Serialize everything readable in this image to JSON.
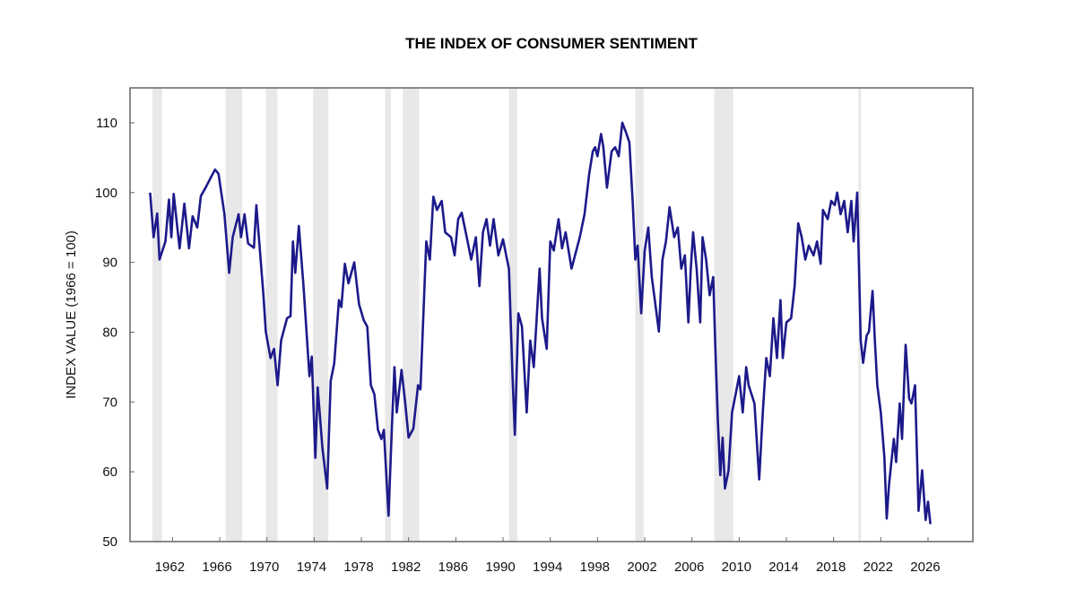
{
  "chart_data": {
    "type": "line",
    "title": "THE INDEX OF CONSUMER SENTIMENT",
    "xlabel": "",
    "ylabel": "INDEX VALUE (1966 = 100)",
    "xlim": [
      1958.4,
      2029.8
    ],
    "ylim": [
      50,
      115
    ],
    "x_ticks": [
      "1962",
      "1966",
      "1970",
      "1974",
      "1978",
      "1982",
      "1986",
      "1990",
      "1994",
      "1998",
      "2002",
      "2006",
      "2010",
      "2014",
      "2018",
      "2022",
      "2026"
    ],
    "y_ticks": [
      "50",
      "60",
      "70",
      "80",
      "90",
      "100",
      "110"
    ],
    "grid": false,
    "legend": "none",
    "colors": {
      "line": "#1c1a8a",
      "recession_band": "#e8e8e8",
      "frame": "#666666"
    },
    "shaded_periods": [
      [
        1960.3,
        1961.1
      ],
      [
        1966.5,
        1967.9
      ],
      [
        1969.9,
        1970.9
      ],
      [
        1973.9,
        1975.2
      ],
      [
        1980.0,
        1980.5
      ],
      [
        1981.5,
        1982.9
      ],
      [
        1990.5,
        1991.2
      ],
      [
        2001.2,
        2001.9
      ],
      [
        2007.9,
        2009.5
      ],
      [
        2020.1,
        2020.3
      ]
    ],
    "series": [
      {
        "x": [
          1960.1,
          1960.4,
          1960.7,
          1960.9,
          1961.4,
          1961.7,
          1961.9,
          1962.1,
          1962.6,
          1963.0,
          1963.4,
          1963.7,
          1964.1,
          1964.4,
          1964.8,
          1965.2,
          1965.6,
          1965.9,
          1966.4,
          1966.8,
          1967.1,
          1967.6,
          1967.8,
          1968.1,
          1968.4,
          1968.9,
          1969.1,
          1969.7,
          1969.9,
          1970.3,
          1970.6,
          1970.9,
          1971.2,
          1971.7,
          1972.0,
          1972.2,
          1972.4,
          1972.7,
          1973.1,
          1973.6,
          1973.8,
          1974.1,
          1974.3,
          1974.7,
          1975.1,
          1975.4,
          1975.7,
          1976.1,
          1976.3,
          1976.6,
          1976.9,
          1977.4,
          1977.8,
          1978.2,
          1978.5,
          1978.8,
          1979.1,
          1979.4,
          1979.7,
          1979.9,
          1980.3,
          1980.6,
          1980.8,
          1981.0,
          1981.4,
          1981.7,
          1982.0,
          1982.4,
          1982.8,
          1983.0,
          1983.5,
          1983.8,
          1984.1,
          1984.4,
          1984.8,
          1985.1,
          1985.6,
          1985.9,
          1986.2,
          1986.5,
          1987.0,
          1987.3,
          1987.7,
          1988.0,
          1988.3,
          1988.6,
          1988.9,
          1989.2,
          1989.6,
          1990.0,
          1990.3,
          1990.5,
          1990.8,
          1991.0,
          1991.3,
          1991.6,
          1992.0,
          1992.3,
          1992.6,
          1993.1,
          1993.3,
          1993.7,
          1994.0,
          1994.3,
          1994.7,
          1995.0,
          1995.3,
          1995.8,
          1996.1,
          1996.5,
          1996.9,
          1997.3,
          1997.6,
          1997.8,
          1998.0,
          1998.3,
          1998.5,
          1998.8,
          1999.2,
          1999.5,
          1999.8,
          2000.1,
          2000.4,
          2000.7,
          2001.0,
          2001.2,
          2001.4,
          2001.7,
          2002.0,
          2002.3,
          2002.6,
          2002.9,
          2003.2,
          2003.5,
          2003.8,
          2004.1,
          2004.5,
          2004.8,
          2005.1,
          2005.4,
          2005.7,
          2005.9,
          2006.1,
          2006.4,
          2006.7,
          2006.9,
          2007.2,
          2007.5,
          2007.8,
          2008.0,
          2008.2,
          2008.4,
          2008.6,
          2008.8,
          2009.1,
          2009.4,
          2009.7,
          2010.0,
          2010.3,
          2010.6,
          2010.8,
          2011.3,
          2011.7,
          2012.0,
          2012.3,
          2012.6,
          2012.9,
          2013.2,
          2013.5,
          2013.7,
          2014.0,
          2014.4,
          2014.7,
          2015.0,
          2015.3,
          2015.6,
          2015.9,
          2016.3,
          2016.6,
          2016.9,
          2017.1,
          2017.5,
          2017.8,
          2018.1,
          2018.3,
          2018.6,
          2018.9,
          2019.2,
          2019.5,
          2019.7,
          2020.0,
          2020.3,
          2020.5,
          2020.8,
          2021.0,
          2021.3,
          2021.5,
          2021.7,
          2022.0,
          2022.3,
          2022.5,
          2022.7,
          2023.1,
          2023.3,
          2023.6,
          2023.8,
          2024.1,
          2024.4,
          2024.6,
          2024.9,
          2025.2,
          2025.5,
          2025.8,
          2026.0,
          2026.2
        ],
        "y": [
          100,
          93.6,
          97,
          90.4,
          93,
          99,
          93.6,
          99.8,
          92,
          98.4,
          92,
          96.6,
          95,
          99.5,
          100.7,
          102,
          103.3,
          102.7,
          96.9,
          88.5,
          93.6,
          96.9,
          93.6,
          96.9,
          92.7,
          92.1,
          98.2,
          85.3,
          80.1,
          76.3,
          77.6,
          72.4,
          78.8,
          82,
          82.3,
          93,
          88.5,
          95.2,
          86.6,
          73.7,
          76.5,
          62,
          72.1,
          63.4,
          57.6,
          73,
          75.6,
          84.6,
          83.6,
          89.8,
          87,
          90,
          84,
          81.7,
          80.8,
          72.4,
          71.1,
          66,
          64.7,
          66,
          53.7,
          67.2,
          75,
          68.5,
          74.6,
          70,
          64.9,
          66.2,
          72.4,
          71.8,
          93,
          90.4,
          99.4,
          97.5,
          98.8,
          94.3,
          93.6,
          91,
          96.2,
          97.1,
          93,
          90.4,
          93.6,
          86.6,
          94.3,
          96.2,
          92.4,
          96.2,
          91,
          93.3,
          90.7,
          89.1,
          73.7,
          65.3,
          82.7,
          80.8,
          68.5,
          78.8,
          75,
          89.1,
          82,
          77.6,
          93,
          91.7,
          96.2,
          92,
          94.3,
          89.1,
          91,
          93.6,
          96.9,
          102.7,
          105.9,
          106.5,
          105.2,
          108.4,
          106.5,
          100.7,
          105.9,
          106.5,
          105.2,
          110,
          108.7,
          107.2,
          98.2,
          90.4,
          92.4,
          82.7,
          91.7,
          95,
          87.9,
          84,
          80.1,
          90.4,
          93,
          97.9,
          93.6,
          95,
          89.1,
          91,
          81.4,
          89.1,
          94.3,
          89.1,
          81.4,
          93.6,
          90.4,
          85.3,
          87.9,
          76.9,
          67.3,
          59.5,
          64.9,
          57.6,
          60.2,
          68.5,
          71.1,
          73.7,
          68.5,
          75,
          72.4,
          69.8,
          58.9,
          68.5,
          76.3,
          73.7,
          82,
          76.3,
          84.6,
          76.3,
          81.4,
          82,
          86.6,
          95.6,
          93.6,
          90.4,
          92.4,
          91,
          93,
          89.8,
          97.5,
          96.2,
          98.8,
          98.2,
          100,
          96.9,
          98.8,
          94.3,
          98.8,
          93,
          100,
          78.8,
          75.6,
          79.5,
          80.1,
          85.9,
          78.8,
          72.4,
          68.5,
          62.1,
          53.3,
          58.2,
          64.7,
          61.4,
          69.8,
          64.7,
          78.2,
          70.5,
          69.8,
          72.4,
          54.4,
          60.2,
          53.1,
          55.7,
          52.5
        ]
      }
    ]
  }
}
